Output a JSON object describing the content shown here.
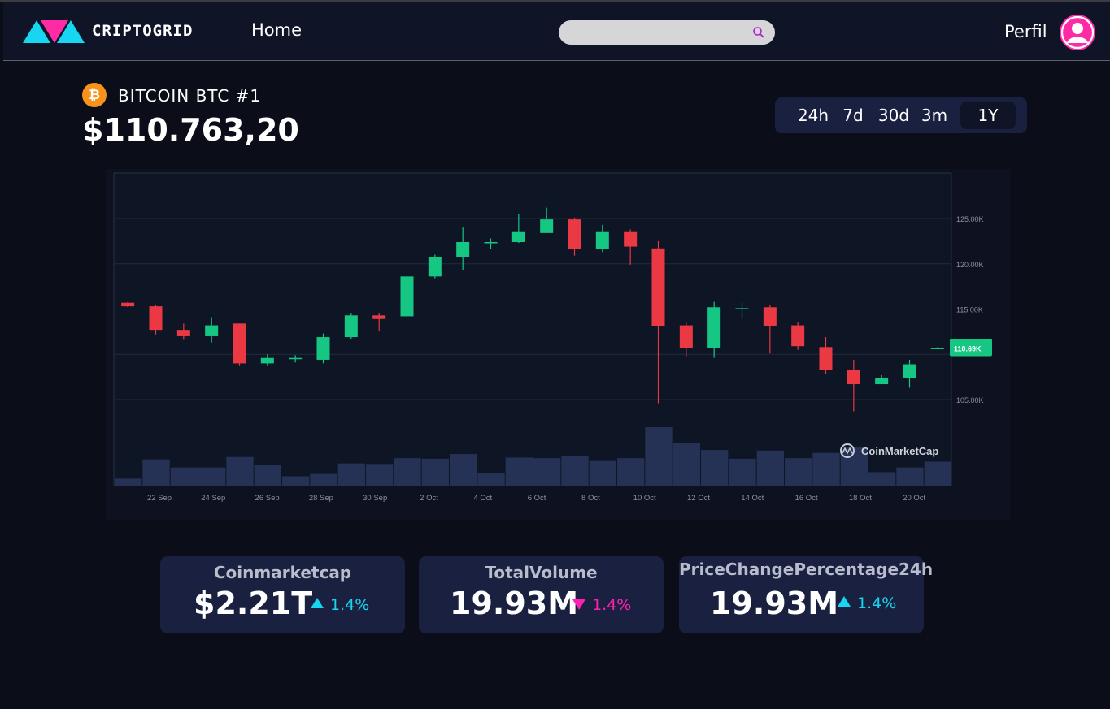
{
  "header": {
    "brand": "CRIPTOGRID",
    "nav_home": "Home",
    "search_placeholder": "",
    "profile_label": "Perfil"
  },
  "coin": {
    "name": "BITCOIN  BTC #1",
    "icon_symbol": "₿",
    "price": "$110.763,20"
  },
  "ranges": [
    "24h",
    "7d",
    "30d",
    "3m",
    "1Y"
  ],
  "active_range": "1Y",
  "chart_data": {
    "type": "candlestick",
    "watermark": "CoinMarketCap",
    "current_price_label": "110.69K",
    "current_price": 110.69,
    "y_ticks": [
      "125.00K",
      "120.00K",
      "115.00K",
      "105.00K"
    ],
    "y_tick_values": [
      125,
      120,
      115,
      105
    ],
    "ylim": [
      100,
      130
    ],
    "x_ticks": [
      "22 Sep",
      "24 Sep",
      "26 Sep",
      "28 Sep",
      "30 Sep",
      "2 Oct",
      "4 Oct",
      "6 Oct",
      "8 Oct",
      "10 Oct",
      "12 Oct",
      "14 Oct",
      "16 Oct",
      "18 Oct",
      "20 Oct"
    ],
    "candles": [
      {
        "o": 115.7,
        "h": 115.8,
        "l": 115.2,
        "c": 115.3
      },
      {
        "o": 115.3,
        "h": 115.5,
        "l": 112.2,
        "c": 112.7
      },
      {
        "o": 112.7,
        "h": 113.4,
        "l": 111.6,
        "c": 112.0
      },
      {
        "o": 112.0,
        "h": 114.1,
        "l": 111.3,
        "c": 113.2
      },
      {
        "o": 113.4,
        "h": 113.4,
        "l": 108.7,
        "c": 109.0
      },
      {
        "o": 109.0,
        "h": 110.0,
        "l": 108.7,
        "c": 109.6
      },
      {
        "o": 109.6,
        "h": 109.9,
        "l": 109.1,
        "c": 109.6
      },
      {
        "o": 109.4,
        "h": 112.3,
        "l": 109.0,
        "c": 111.9
      },
      {
        "o": 111.9,
        "h": 114.5,
        "l": 111.7,
        "c": 114.3
      },
      {
        "o": 114.3,
        "h": 114.6,
        "l": 112.6,
        "c": 113.9
      },
      {
        "o": 114.2,
        "h": 118.6,
        "l": 114.2,
        "c": 118.6
      },
      {
        "o": 118.6,
        "h": 121.0,
        "l": 118.4,
        "c": 120.7
      },
      {
        "o": 120.7,
        "h": 124.0,
        "l": 119.3,
        "c": 122.4
      },
      {
        "o": 122.3,
        "h": 122.8,
        "l": 121.6,
        "c": 122.4
      },
      {
        "o": 122.4,
        "h": 125.5,
        "l": 122.3,
        "c": 123.5
      },
      {
        "o": 123.4,
        "h": 126.2,
        "l": 123.4,
        "c": 124.9
      },
      {
        "o": 124.9,
        "h": 125.1,
        "l": 120.9,
        "c": 121.6
      },
      {
        "o": 121.6,
        "h": 124.3,
        "l": 121.3,
        "c": 123.5
      },
      {
        "o": 123.5,
        "h": 123.8,
        "l": 119.9,
        "c": 121.9
      },
      {
        "o": 121.7,
        "h": 122.5,
        "l": 104.6,
        "c": 113.1
      },
      {
        "o": 113.2,
        "h": 113.5,
        "l": 109.7,
        "c": 110.7
      },
      {
        "o": 110.7,
        "h": 115.8,
        "l": 109.6,
        "c": 115.2
      },
      {
        "o": 115.1,
        "h": 115.7,
        "l": 113.9,
        "c": 115.1
      },
      {
        "o": 115.2,
        "h": 115.5,
        "l": 110.1,
        "c": 113.1
      },
      {
        "o": 113.2,
        "h": 113.6,
        "l": 110.5,
        "c": 110.9
      },
      {
        "o": 110.8,
        "h": 111.9,
        "l": 107.8,
        "c": 108.3
      },
      {
        "o": 108.3,
        "h": 109.4,
        "l": 103.7,
        "c": 106.7
      },
      {
        "o": 106.7,
        "h": 107.7,
        "l": 106.7,
        "c": 107.4
      },
      {
        "o": 107.4,
        "h": 109.4,
        "l": 106.3,
        "c": 108.9
      },
      {
        "o": 110.7,
        "h": 110.8,
        "l": 110.6,
        "c": 110.7
      }
    ],
    "volumes": [
      0.12,
      0.45,
      0.31,
      0.31,
      0.49,
      0.36,
      0.16,
      0.2,
      0.38,
      0.37,
      0.47,
      0.46,
      0.54,
      0.22,
      0.48,
      0.47,
      0.5,
      0.42,
      0.47,
      1.0,
      0.73,
      0.61,
      0.46,
      0.6,
      0.47,
      0.56,
      0.66,
      0.23,
      0.31,
      0.41
    ]
  },
  "stats": [
    {
      "title": "Coinmarketcap",
      "value": "$2.21T",
      "change": "1.4%",
      "direction": "up"
    },
    {
      "title": "TotalVolume",
      "value": "19.93M",
      "change": "1.4%",
      "direction": "down"
    },
    {
      "title": "PriceChangePercentage24h",
      "value": "19.93M",
      "change": "1.4%",
      "direction": "up"
    }
  ],
  "colors": {
    "up": "#16c784",
    "down": "#ea3943",
    "accent_cyan": "#17d6f2",
    "accent_pink": "#ff1fb3",
    "volume": "#263255"
  }
}
